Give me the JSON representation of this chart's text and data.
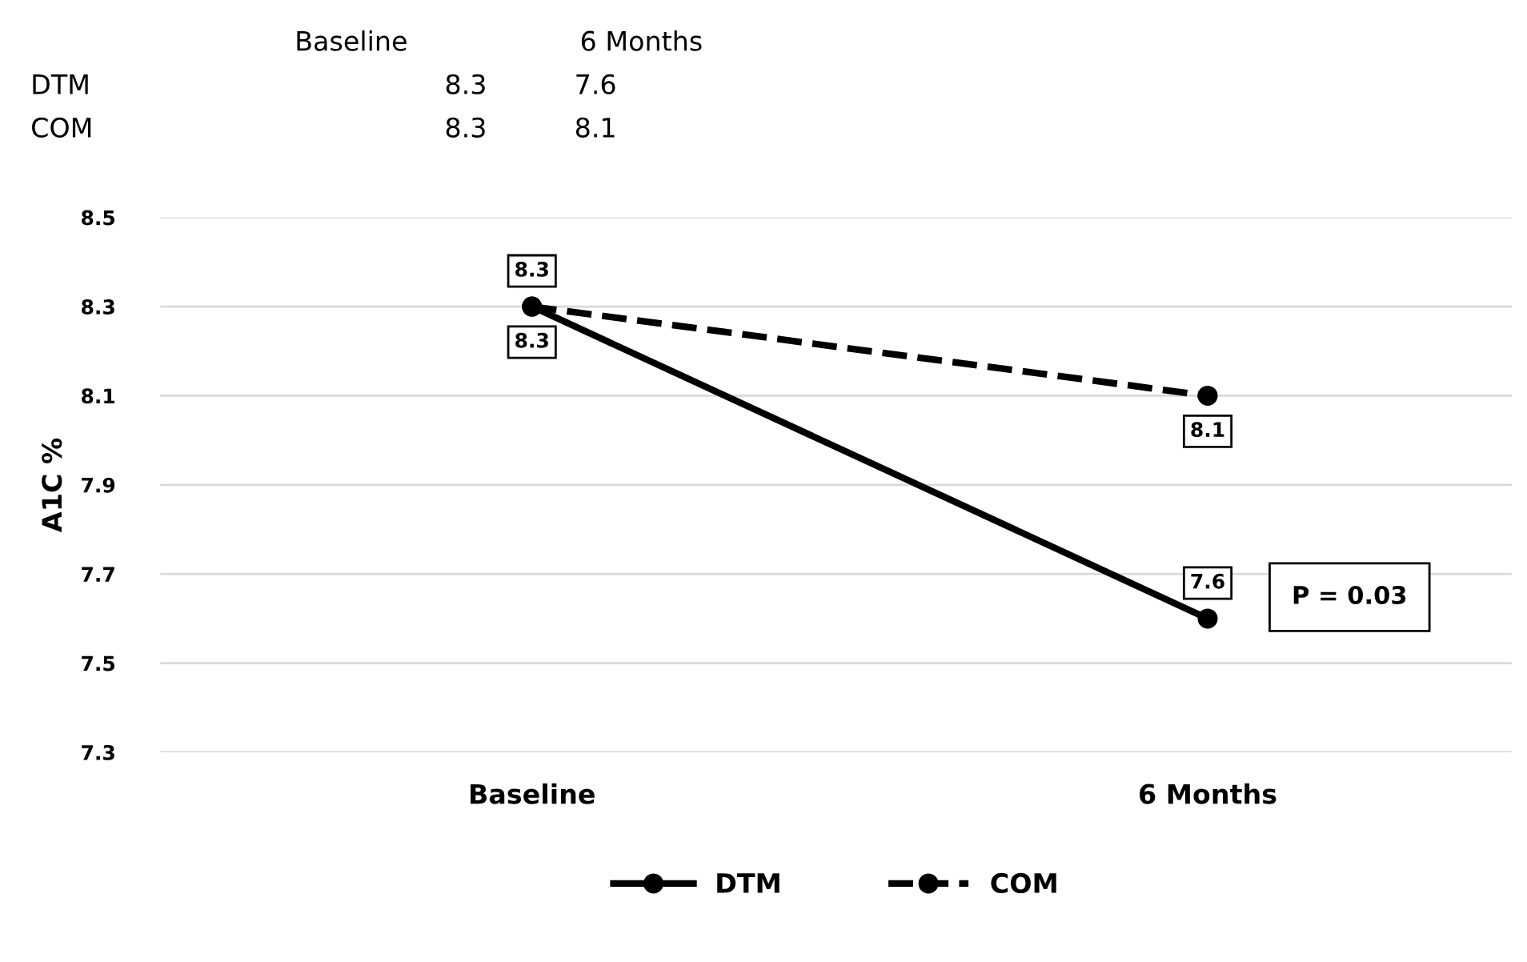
{
  "chart_data": {
    "type": "line",
    "ylabel": "A1C %",
    "categories": [
      "Baseline",
      "6 Months"
    ],
    "series": [
      {
        "name": "DTM",
        "color": "#000000",
        "values": [
          8.3,
          7.6
        ],
        "line_style": "solid"
      },
      {
        "name": "COM",
        "color": "#000000",
        "values": [
          8.3,
          8.1
        ],
        "line_style": "dashed"
      }
    ],
    "ylim": [
      7.3,
      8.5
    ],
    "yticks": [
      7.3,
      7.5,
      7.7,
      7.9,
      8.1,
      8.3,
      8.5
    ],
    "grid": "y",
    "legend": "bottom",
    "marker": "circle",
    "data_labels": true,
    "annotations": [
      "P = 0.03",
      "8.3",
      "7.6",
      "8.3",
      "8.1"
    ]
  }
}
